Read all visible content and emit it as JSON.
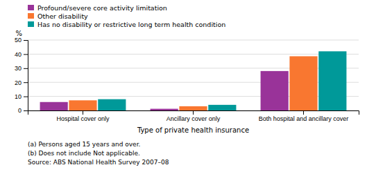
{
  "chart_data": {
    "type": "bar",
    "xlabel": "Type of private health insurance",
    "ylabel": "%",
    "categories": [
      "Hospital cover only",
      "Ancillary cover only",
      "Both hospital and ancillary cover"
    ],
    "series": [
      {
        "name": "Profound/severe core activity limitation",
        "color": "#993399",
        "values": [
          6,
          1.2,
          28
        ]
      },
      {
        "name": "Other disability",
        "color": "#F97730",
        "values": [
          7.2,
          3,
          38.5
        ]
      },
      {
        "name": "Has no disability or restrictive long term health condition",
        "color": "#009999",
        "values": [
          8,
          4,
          42
        ]
      }
    ],
    "ylim": [
      0,
      50
    ],
    "yticks": [
      0,
      10,
      20,
      30,
      40,
      50
    ],
    "grid": true,
    "legend": "top",
    "annotations": [
      "(a) Persons aged 15 years and over.",
      "(b) Does not include Not applicable.",
      "Source: ABS National Health Survey 2007–08"
    ]
  }
}
